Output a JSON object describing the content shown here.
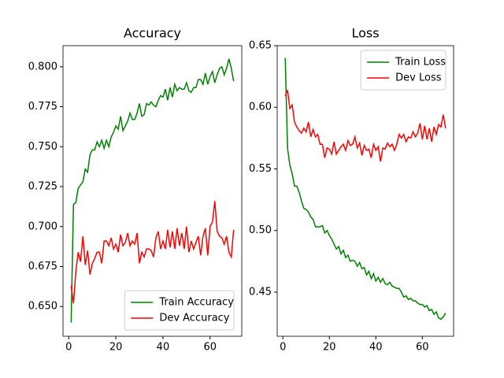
{
  "chart_data": [
    {
      "type": "line",
      "title": "Accuracy",
      "x": [
        1,
        2,
        3,
        4,
        5,
        6,
        7,
        8,
        9,
        10,
        11,
        12,
        13,
        14,
        15,
        16,
        17,
        18,
        19,
        20,
        21,
        22,
        23,
        24,
        25,
        26,
        27,
        28,
        29,
        30,
        31,
        32,
        33,
        34,
        35,
        36,
        37,
        38,
        39,
        40,
        41,
        42,
        43,
        44,
        45,
        46,
        47,
        48,
        49,
        50,
        51,
        52,
        53,
        54,
        55,
        56,
        57,
        58,
        59,
        60,
        61,
        62,
        63,
        64,
        65,
        66,
        67,
        68,
        69,
        70
      ],
      "series": [
        {
          "name": "Train Accuracy",
          "color": "#008000",
          "values": [
            0.64,
            0.714,
            0.715,
            0.724,
            0.726,
            0.728,
            0.736,
            0.734,
            0.745,
            0.748,
            0.748,
            0.753,
            0.75,
            0.754,
            0.749,
            0.754,
            0.75,
            0.756,
            0.759,
            0.763,
            0.761,
            0.769,
            0.76,
            0.763,
            0.766,
            0.771,
            0.767,
            0.767,
            0.771,
            0.777,
            0.769,
            0.77,
            0.777,
            0.776,
            0.778,
            0.776,
            0.775,
            0.779,
            0.782,
            0.781,
            0.786,
            0.779,
            0.787,
            0.781,
            0.789,
            0.785,
            0.787,
            0.786,
            0.786,
            0.79,
            0.785,
            0.784,
            0.787,
            0.787,
            0.792,
            0.792,
            0.789,
            0.796,
            0.789,
            0.794,
            0.797,
            0.79,
            0.795,
            0.799,
            0.8,
            0.795,
            0.799,
            0.805,
            0.799,
            0.791
          ]
        },
        {
          "name": "Dev Accuracy",
          "color": "#ff0000",
          "values": [
            0.663,
            0.652,
            0.672,
            0.684,
            0.678,
            0.694,
            0.676,
            0.685,
            0.67,
            0.677,
            0.68,
            0.684,
            0.684,
            0.677,
            0.691,
            0.691,
            0.688,
            0.693,
            0.686,
            0.689,
            0.684,
            0.695,
            0.688,
            0.69,
            0.696,
            0.688,
            0.691,
            0.689,
            0.696,
            0.677,
            0.684,
            0.681,
            0.686,
            0.686,
            0.685,
            0.681,
            0.693,
            0.697,
            0.686,
            0.691,
            0.686,
            0.698,
            0.687,
            0.697,
            0.686,
            0.699,
            0.688,
            0.696,
            0.686,
            0.7,
            0.684,
            0.691,
            0.686,
            0.69,
            0.694,
            0.682,
            0.694,
            0.699,
            0.682,
            0.7,
            0.703,
            0.716,
            0.697,
            0.694,
            0.693,
            0.689,
            0.694,
            0.684,
            0.681,
            0.698
          ]
        }
      ],
      "xlim": [
        -2.45,
        73.45
      ],
      "xticks": [
        0,
        20,
        40,
        60
      ],
      "ylim": [
        0.6314,
        0.8132
      ],
      "yticks": [
        {
          "value": 0.65,
          "label": "0.650"
        },
        0.675,
        {
          "value": 0.7,
          "label": "0.700"
        },
        0.725,
        {
          "value": 0.75,
          "label": "0.750"
        },
        0.775,
        {
          "value": 0.8,
          "label": "0.800"
        }
      ],
      "legend": "lower right"
    },
    {
      "type": "line",
      "title": "Loss",
      "x": [
        1,
        2,
        3,
        4,
        5,
        6,
        7,
        8,
        9,
        10,
        11,
        12,
        13,
        14,
        15,
        16,
        17,
        18,
        19,
        20,
        21,
        22,
        23,
        24,
        25,
        26,
        27,
        28,
        29,
        30,
        31,
        32,
        33,
        34,
        35,
        36,
        37,
        38,
        39,
        40,
        41,
        42,
        43,
        44,
        45,
        46,
        47,
        48,
        49,
        50,
        51,
        52,
        53,
        54,
        55,
        56,
        57,
        58,
        59,
        60,
        61,
        62,
        63,
        64,
        65,
        66,
        67,
        68,
        69,
        70
      ],
      "series": [
        {
          "name": "Train Loss",
          "color": "#008000",
          "values": [
            0.64,
            0.567,
            0.553,
            0.546,
            0.536,
            0.536,
            0.531,
            0.524,
            0.518,
            0.517,
            0.515,
            0.511,
            0.509,
            0.503,
            0.503,
            0.503,
            0.504,
            0.498,
            0.5,
            0.496,
            0.493,
            0.489,
            0.485,
            0.487,
            0.481,
            0.484,
            0.478,
            0.48,
            0.475,
            0.476,
            0.475,
            0.471,
            0.474,
            0.469,
            0.47,
            0.464,
            0.467,
            0.461,
            0.465,
            0.459,
            0.462,
            0.458,
            0.461,
            0.457,
            0.456,
            0.458,
            0.455,
            0.454,
            0.453,
            0.453,
            0.45,
            0.446,
            0.447,
            0.444,
            0.445,
            0.443,
            0.443,
            0.441,
            0.44,
            0.44,
            0.438,
            0.439,
            0.435,
            0.436,
            0.432,
            0.434,
            0.429,
            0.428,
            0.43,
            0.433
          ]
        },
        {
          "name": "Dev Loss",
          "color": "#ff0000",
          "values": [
            0.609,
            0.614,
            0.599,
            0.602,
            0.588,
            0.584,
            0.581,
            0.579,
            0.583,
            0.58,
            0.588,
            0.576,
            0.582,
            0.576,
            0.578,
            0.57,
            0.57,
            0.559,
            0.567,
            0.566,
            0.562,
            0.572,
            0.562,
            0.565,
            0.568,
            0.57,
            0.565,
            0.573,
            0.569,
            0.57,
            0.576,
            0.567,
            0.571,
            0.561,
            0.569,
            0.565,
            0.566,
            0.559,
            0.57,
            0.565,
            0.568,
            0.556,
            0.567,
            0.566,
            0.571,
            0.568,
            0.57,
            0.565,
            0.57,
            0.578,
            0.575,
            0.578,
            0.572,
            0.576,
            0.575,
            0.58,
            0.576,
            0.579,
            0.587,
            0.574,
            0.585,
            0.574,
            0.583,
            0.572,
            0.584,
            0.578,
            0.586,
            0.584,
            0.594,
            0.583
          ]
        }
      ],
      "xlim": [
        -2.45,
        73.45
      ],
      "xticks": [
        0,
        20,
        40,
        60
      ],
      "ylim": [
        0.4142,
        0.65
      ],
      "yticks": [
        0.45,
        {
          "value": 0.5,
          "label": "0.50"
        },
        0.55,
        {
          "value": 0.6,
          "label": "0.60"
        },
        0.65
      ],
      "legend": "upper right"
    }
  ]
}
